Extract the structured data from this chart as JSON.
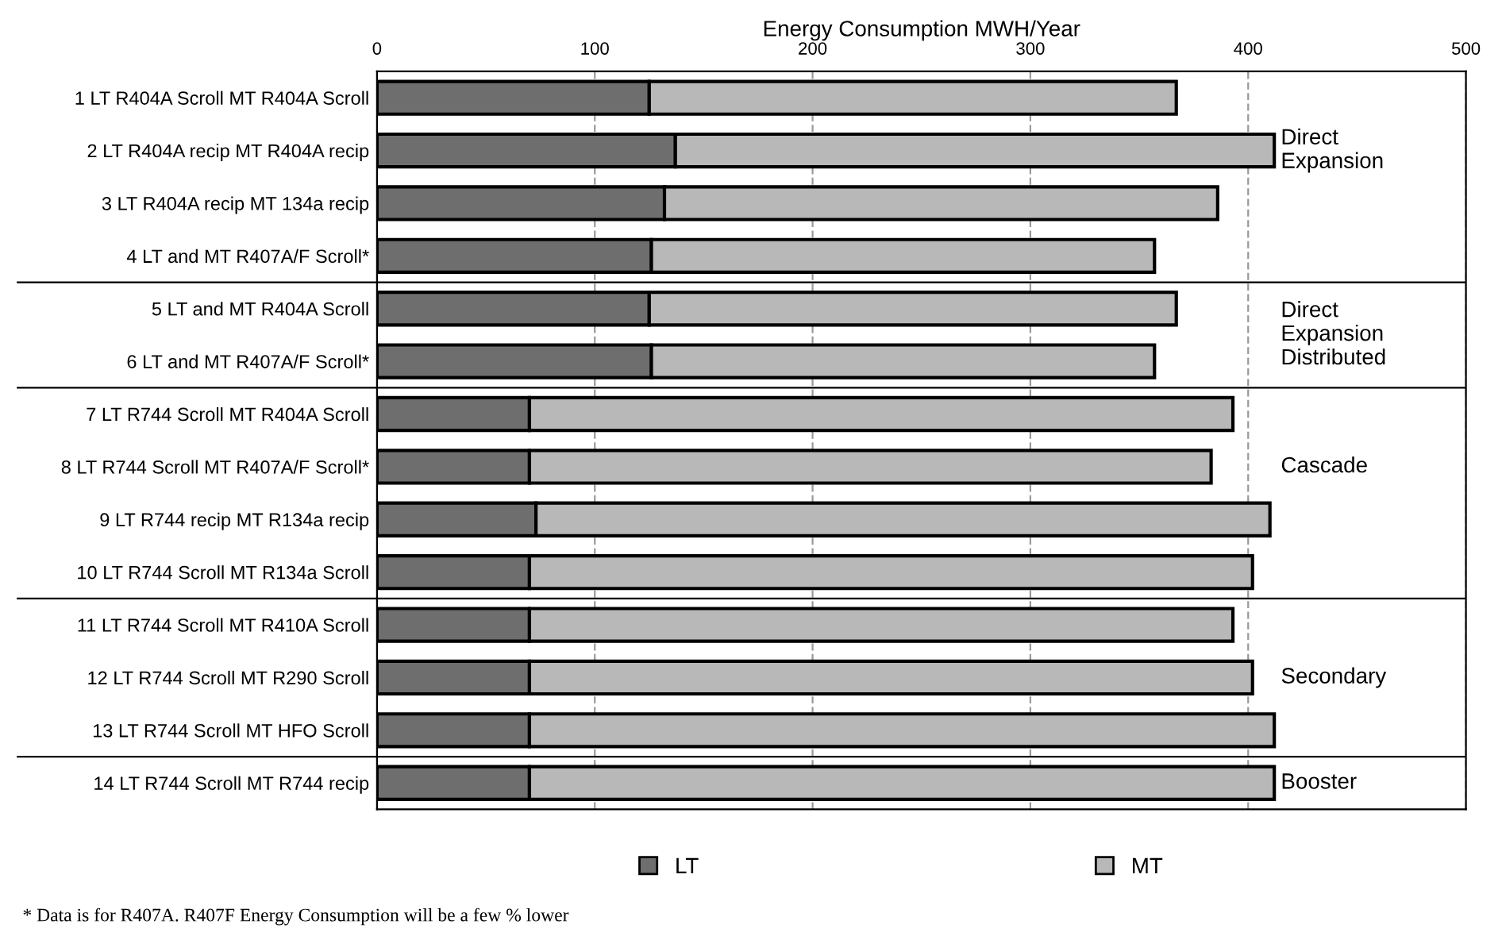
{
  "chart_data": {
    "type": "bar",
    "orientation": "horizontal",
    "stacked": true,
    "title": "Energy Consumption MWH/Year",
    "categories": [
      "1 LT R404A Scroll MT R404A Scroll",
      "2 LT R404A recip MT R404A recip",
      "3 LT R404A recip MT 134a recip",
      "4 LT and MT R407A/F Scroll*",
      "5 LT and MT R404A Scroll",
      "6 LT and MT R407A/F Scroll*",
      "7 LT R744 Scroll MT R404A Scroll",
      "8 LT R744 Scroll MT R407A/F Scroll*",
      "9 LT R744 recip MT R134a recip",
      "10 LT R744 Scroll MT R134a Scroll",
      "11 LT R744 Scroll MT R410A Scroll",
      "12 LT R744 Scroll MT R290 Scroll",
      "13 LT R744 Scroll MT HFO Scroll",
      "14 LT R744 Scroll MT R744 recip"
    ],
    "series": [
      {
        "name": "LT",
        "color": "#6e6e6e",
        "values": [
          125,
          137,
          132,
          126,
          125,
          126,
          70,
          70,
          73,
          70,
          70,
          70,
          70,
          70
        ]
      },
      {
        "name": "MT",
        "color": "#b8b8b8",
        "values": [
          242,
          275,
          254,
          231,
          242,
          231,
          323,
          313,
          337,
          332,
          323,
          332,
          342,
          342
        ]
      }
    ],
    "xlim": [
      0,
      500
    ],
    "xticks": [
      0,
      100,
      200,
      300,
      400,
      500
    ],
    "grid": "x",
    "legend": "bottom",
    "annotations": [
      "Direct\nExpansion",
      "Direct\nExpansion\nDistributed",
      "Cascade",
      "Secondary",
      "Booster",
      "* Data is for R407A. R407F Energy Consumption will be a few % lower"
    ]
  }
}
